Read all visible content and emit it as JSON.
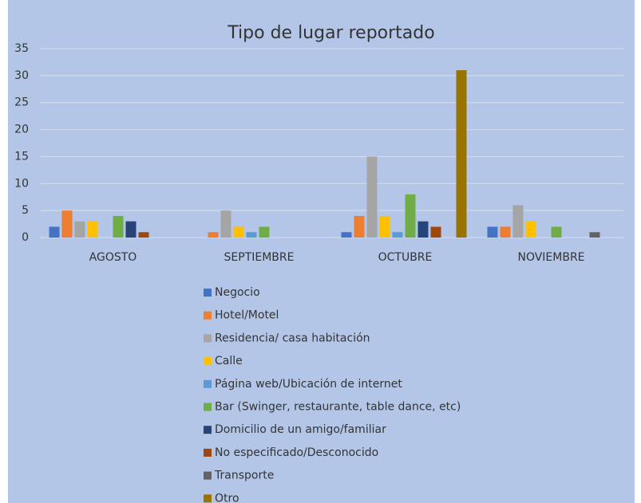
{
  "chart_data": {
    "type": "bar",
    "title": "Tipo de lugar reportado",
    "categories": [
      "AGOSTO",
      "SEPTIEMBRE",
      "OCTUBRE",
      "NOVIEMBRE"
    ],
    "series": [
      {
        "name": "Negocio",
        "color": "#4472c4",
        "values": [
          2,
          0,
          1,
          2
        ]
      },
      {
        "name": "Hotel/Motel",
        "color": "#ed7d31",
        "values": [
          5,
          1,
          4,
          2
        ]
      },
      {
        "name": "Residencia/ casa habitación",
        "color": "#a5a5a5",
        "values": [
          3,
          5,
          15,
          6
        ]
      },
      {
        "name": "Calle",
        "color": "#ffc000",
        "values": [
          3,
          2,
          4,
          3
        ]
      },
      {
        "name": "Página web/Ubicación de internet",
        "color": "#5b9bd5",
        "values": [
          0,
          1,
          1,
          0
        ]
      },
      {
        "name": "Bar (Swinger, restaurante, table dance, etc)",
        "color": "#70ad47",
        "values": [
          4,
          2,
          8,
          2
        ]
      },
      {
        "name": "Domicilio de un amigo/familiar",
        "color": "#264478",
        "values": [
          3,
          0,
          3,
          0
        ]
      },
      {
        "name": "No especificado/Desconocido",
        "color": "#9e480e",
        "values": [
          1,
          0,
          2,
          0
        ]
      },
      {
        "name": "Transporte",
        "color": "#636363",
        "values": [
          0,
          0,
          0,
          1
        ]
      },
      {
        "name": "Otro",
        "color": "#997300",
        "values": [
          0,
          0,
          31,
          0
        ]
      }
    ],
    "ylim": [
      0,
      35
    ],
    "yticks": [
      0,
      5,
      10,
      15,
      20,
      25,
      30,
      35
    ],
    "grid": true,
    "legend": "bottom"
  }
}
